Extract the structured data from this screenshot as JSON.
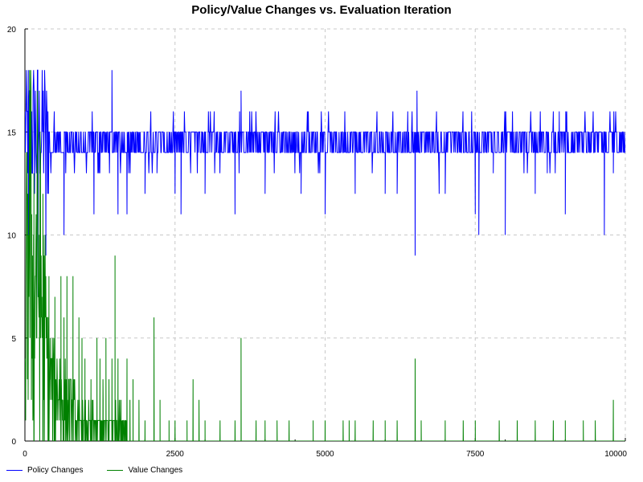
{
  "chart_data": {
    "type": "line",
    "title": "Policy/Value Changes vs. Evaluation Iteration",
    "xlabel": "",
    "ylabel": "",
    "xlim": [
      0,
      10000
    ],
    "ylim": [
      0,
      20
    ],
    "x_ticks": [
      0,
      2500,
      5000,
      7500,
      10000
    ],
    "y_ticks": [
      0,
      5,
      10,
      15,
      20
    ],
    "grid": true,
    "legend_position": "bottom-left",
    "series": [
      {
        "name": "Policy Changes",
        "color": "#0000ff",
        "points": [
          [
            0,
            13
          ],
          [
            50,
            11
          ],
          [
            100,
            14
          ],
          [
            150,
            16
          ],
          [
            200,
            17
          ],
          [
            250,
            18
          ],
          [
            300,
            16
          ],
          [
            350,
            15
          ],
          [
            400,
            14
          ],
          [
            500,
            15
          ],
          [
            600,
            14
          ],
          [
            800,
            15
          ],
          [
            1000,
            14
          ],
          [
            1500,
            15
          ],
          [
            2000,
            14
          ],
          [
            2500,
            15
          ],
          [
            3000,
            14
          ],
          [
            3500,
            15
          ],
          [
            4000,
            14
          ],
          [
            4500,
            15
          ],
          [
            5000,
            14
          ],
          [
            5500,
            15
          ],
          [
            6000,
            14
          ],
          [
            6500,
            15
          ],
          [
            7000,
            14
          ],
          [
            7500,
            15
          ],
          [
            8000,
            14
          ],
          [
            8500,
            15
          ],
          [
            9000,
            14
          ],
          [
            9500,
            15
          ],
          [
            9900,
            13
          ],
          [
            10000,
            12
          ]
        ],
        "range_min": 14,
        "range_max": 15,
        "spikes": [
          [
            60,
            9
          ],
          [
            220,
            7
          ],
          [
            350,
            9
          ],
          [
            650,
            10
          ],
          [
            1150,
            11
          ],
          [
            1450,
            18
          ],
          [
            1550,
            11
          ],
          [
            1700,
            11
          ],
          [
            2000,
            12
          ],
          [
            2200,
            13
          ],
          [
            2500,
            12
          ],
          [
            2600,
            11
          ],
          [
            3000,
            12
          ],
          [
            3500,
            11
          ],
          [
            3600,
            17
          ],
          [
            4000,
            12
          ],
          [
            4600,
            12
          ],
          [
            5000,
            11
          ],
          [
            5500,
            12
          ],
          [
            6000,
            12
          ],
          [
            6200,
            12
          ],
          [
            6500,
            9
          ],
          [
            6530,
            17
          ],
          [
            6900,
            12
          ],
          [
            7000,
            12
          ],
          [
            7500,
            11
          ],
          [
            7560,
            10
          ],
          [
            7800,
            13
          ],
          [
            8000,
            10
          ],
          [
            8500,
            12
          ],
          [
            8700,
            13
          ],
          [
            8900,
            16
          ],
          [
            9000,
            11
          ],
          [
            9650,
            10
          ],
          [
            9800,
            13
          ]
        ]
      },
      {
        "name": "Value Changes",
        "color": "#008000",
        "points": [
          [
            0,
            3
          ],
          [
            50,
            13
          ],
          [
            100,
            12
          ],
          [
            150,
            9
          ],
          [
            200,
            11
          ],
          [
            250,
            10
          ],
          [
            300,
            7
          ],
          [
            350,
            6
          ],
          [
            400,
            4
          ],
          [
            500,
            3
          ],
          [
            600,
            3
          ],
          [
            700,
            2
          ],
          [
            800,
            2
          ],
          [
            900,
            1
          ],
          [
            1000,
            1
          ],
          [
            1200,
            1
          ],
          [
            1400,
            1
          ],
          [
            1600,
            1
          ],
          [
            1800,
            0
          ],
          [
            2000,
            0
          ],
          [
            10000,
            0
          ]
        ],
        "spikes": [
          [
            150,
            13
          ],
          [
            300,
            12
          ],
          [
            400,
            8
          ],
          [
            500,
            7
          ],
          [
            600,
            8
          ],
          [
            650,
            6
          ],
          [
            700,
            8
          ],
          [
            800,
            8
          ],
          [
            900,
            6
          ],
          [
            950,
            5
          ],
          [
            1000,
            4
          ],
          [
            1100,
            3
          ],
          [
            1200,
            5
          ],
          [
            1250,
            4
          ],
          [
            1300,
            3
          ],
          [
            1350,
            5
          ],
          [
            1400,
            3
          ],
          [
            1450,
            4
          ],
          [
            1500,
            9
          ],
          [
            1550,
            4
          ],
          [
            1600,
            2
          ],
          [
            1700,
            4
          ],
          [
            1750,
            2
          ],
          [
            1800,
            3
          ],
          [
            1900,
            2
          ],
          [
            2000,
            1
          ],
          [
            2150,
            6
          ],
          [
            2250,
            2
          ],
          [
            2400,
            1
          ],
          [
            2500,
            1
          ],
          [
            2700,
            1
          ],
          [
            2800,
            3
          ],
          [
            2900,
            2
          ],
          [
            3000,
            1
          ],
          [
            3250,
            1
          ],
          [
            3500,
            1
          ],
          [
            3600,
            5
          ],
          [
            3850,
            1
          ],
          [
            4000,
            1
          ],
          [
            4200,
            1
          ],
          [
            4400,
            1
          ],
          [
            4800,
            1
          ],
          [
            5000,
            1
          ],
          [
            5300,
            1
          ],
          [
            5400,
            1
          ],
          [
            5500,
            1
          ],
          [
            5800,
            1
          ],
          [
            6000,
            1
          ],
          [
            6200,
            1
          ],
          [
            6500,
            4
          ],
          [
            6600,
            1
          ],
          [
            7000,
            1
          ],
          [
            7300,
            1
          ],
          [
            7500,
            1
          ],
          [
            7900,
            1
          ],
          [
            8200,
            1
          ],
          [
            8500,
            1
          ],
          [
            8800,
            1
          ],
          [
            9000,
            1
          ],
          [
            9300,
            1
          ],
          [
            9500,
            1
          ],
          [
            9800,
            2
          ]
        ]
      }
    ]
  }
}
